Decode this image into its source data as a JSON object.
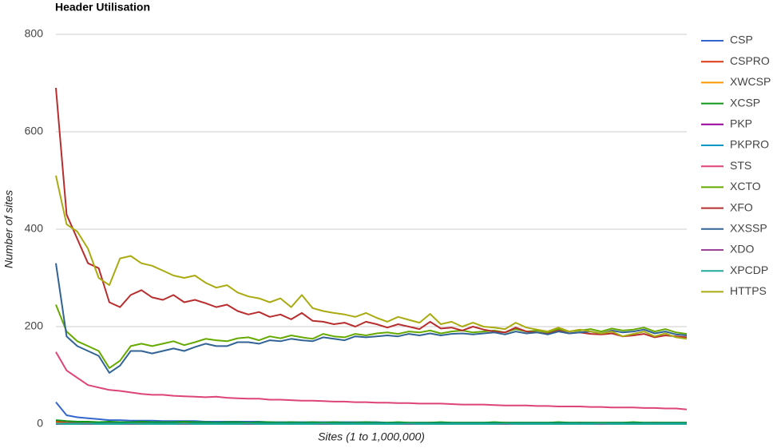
{
  "chart_data": {
    "type": "line",
    "title": "Header Utilisation",
    "x_label": "Sites (1 to 1,000,000)",
    "y_label": "Number of sites",
    "categories": [
      null,
      null,
      null,
      null,
      null,
      null,
      null,
      null,
      null,
      null,
      null,
      null,
      null,
      null,
      null,
      null,
      null,
      null,
      null,
      null,
      null,
      null,
      null,
      null,
      null,
      null,
      null,
      null,
      null,
      null,
      null,
      null,
      null,
      null,
      null,
      null,
      null,
      null,
      null,
      null,
      null,
      null,
      null,
      null,
      null,
      null,
      null,
      null,
      null,
      null,
      null,
      null,
      null,
      null,
      null,
      null,
      null,
      null,
      null,
      null
    ],
    "ylim": [
      0,
      800
    ],
    "yticks": [
      0,
      200,
      400,
      600,
      800
    ],
    "grid": true,
    "legend": "right",
    "series": [
      {
        "name": "CSP",
        "color": "#3366cc",
        "values": [
          45,
          18,
          14,
          12,
          10,
          8,
          8,
          7,
          7,
          7,
          6,
          6,
          6,
          6,
          5,
          5,
          5,
          5,
          5,
          5,
          4,
          4,
          4,
          4,
          4,
          4,
          4,
          4,
          4,
          4,
          4,
          3,
          3,
          3,
          3,
          3,
          3,
          3,
          3,
          3,
          3,
          3,
          3,
          3,
          3,
          3,
          3,
          3,
          3,
          3,
          3,
          3,
          3,
          3,
          3,
          3,
          3,
          3,
          3,
          3
        ]
      },
      {
        "name": "CSPRO",
        "color": "#dc3912",
        "values": [
          5,
          3,
          3,
          2,
          2,
          2,
          3,
          2,
          2,
          2,
          2,
          3,
          2,
          2,
          2,
          2,
          3,
          2,
          2,
          2,
          2,
          2,
          3,
          2,
          2,
          2,
          2,
          2,
          3,
          2,
          2,
          2,
          2,
          2,
          2,
          3,
          2,
          2,
          2,
          2,
          2,
          2,
          3,
          2,
          2,
          2,
          2,
          2,
          2,
          3,
          2,
          2,
          2,
          2,
          2,
          2,
          3,
          2,
          2,
          2
        ]
      },
      {
        "name": "XWCSP",
        "color": "#ff9900",
        "values": [
          2,
          1,
          1,
          1,
          1,
          1,
          1,
          1,
          1,
          1,
          1,
          1,
          1,
          1,
          1,
          1,
          1,
          1,
          1,
          1,
          1,
          1,
          1,
          1,
          1,
          1,
          1,
          1,
          1,
          1,
          1,
          1,
          1,
          1,
          1,
          1,
          1,
          1,
          1,
          1,
          1,
          1,
          1,
          1,
          1,
          1,
          1,
          1,
          1,
          1,
          1,
          1,
          1,
          1,
          1,
          1,
          1,
          1,
          1,
          1
        ]
      },
      {
        "name": "XCSP",
        "color": "#109618",
        "values": [
          8,
          6,
          5,
          5,
          4,
          5,
          4,
          4,
          5,
          4,
          4,
          4,
          5,
          4,
          4,
          3,
          4,
          4,
          3,
          4,
          4,
          3,
          4,
          3,
          4,
          3,
          4,
          3,
          3,
          4,
          3,
          3,
          4,
          3,
          3,
          3,
          4,
          3,
          3,
          3,
          3,
          4,
          3,
          3,
          3,
          3,
          3,
          4,
          3,
          3,
          3,
          3,
          3,
          3,
          4,
          3,
          3,
          3,
          3,
          3
        ]
      },
      {
        "name": "PKP",
        "color": "#990099",
        "values": [
          0,
          0,
          0,
          0,
          0,
          0,
          0,
          0,
          0,
          0,
          0,
          0,
          0,
          0,
          0,
          0,
          0,
          0,
          0,
          0,
          0,
          0,
          0,
          0,
          0,
          0,
          0,
          0,
          0,
          0,
          0,
          0,
          0,
          0,
          0,
          0,
          0,
          0,
          0,
          0,
          0,
          0,
          0,
          0,
          0,
          0,
          0,
          0,
          0,
          0,
          0,
          0,
          0,
          0,
          0,
          0,
          0,
          0,
          0,
          0
        ]
      },
      {
        "name": "PKPRO",
        "color": "#0099c6",
        "values": [
          1,
          1,
          1,
          1,
          1,
          1,
          1,
          1,
          1,
          1,
          1,
          1,
          1,
          1,
          1,
          1,
          1,
          1,
          1,
          1,
          1,
          1,
          1,
          1,
          1,
          1,
          1,
          1,
          1,
          1,
          1,
          1,
          1,
          1,
          1,
          1,
          1,
          1,
          1,
          1,
          1,
          1,
          1,
          1,
          1,
          1,
          1,
          1,
          1,
          1,
          1,
          1,
          1,
          1,
          1,
          1,
          1,
          1,
          1,
          1
        ]
      },
      {
        "name": "STS",
        "color": "#dd4477",
        "values": [
          148,
          110,
          95,
          80,
          75,
          70,
          68,
          65,
          62,
          60,
          60,
          58,
          57,
          56,
          55,
          56,
          54,
          53,
          52,
          52,
          50,
          50,
          49,
          48,
          48,
          47,
          46,
          46,
          45,
          45,
          44,
          44,
          43,
          43,
          42,
          42,
          42,
          41,
          40,
          40,
          40,
          39,
          38,
          38,
          38,
          37,
          37,
          36,
          36,
          36,
          35,
          35,
          34,
          34,
          34,
          33,
          33,
          32,
          32,
          30
        ]
      },
      {
        "name": "XCTO",
        "color": "#66aa00",
        "values": [
          245,
          190,
          170,
          160,
          150,
          115,
          130,
          160,
          165,
          160,
          165,
          170,
          162,
          168,
          175,
          172,
          170,
          176,
          178,
          172,
          180,
          176,
          182,
          178,
          175,
          185,
          180,
          178,
          185,
          182,
          186,
          188,
          185,
          190,
          188,
          192,
          186,
          190,
          192,
          188,
          190,
          192,
          188,
          195,
          190,
          192,
          188,
          195,
          190,
          192,
          195,
          190,
          196,
          192,
          194,
          198,
          190,
          195,
          188,
          185
        ]
      },
      {
        "name": "XFO",
        "color": "#b82e2e",
        "values": [
          690,
          430,
          380,
          330,
          320,
          250,
          240,
          265,
          275,
          260,
          255,
          265,
          250,
          255,
          248,
          240,
          245,
          232,
          225,
          230,
          220,
          225,
          215,
          228,
          212,
          210,
          205,
          208,
          200,
          210,
          205,
          198,
          205,
          200,
          195,
          210,
          196,
          198,
          192,
          200,
          194,
          190,
          188,
          198,
          190,
          188,
          185,
          192,
          186,
          188,
          185,
          184,
          186,
          180,
          182,
          185,
          178,
          182,
          180,
          178
        ]
      },
      {
        "name": "XXSSP",
        "color": "#316395",
        "values": [
          330,
          180,
          160,
          150,
          140,
          105,
          120,
          150,
          150,
          145,
          150,
          155,
          150,
          158,
          165,
          160,
          160,
          168,
          168,
          165,
          172,
          170,
          175,
          172,
          170,
          178,
          175,
          172,
          180,
          178,
          180,
          182,
          180,
          185,
          182,
          186,
          182,
          185,
          186,
          184,
          186,
          188,
          184,
          190,
          186,
          188,
          184,
          190,
          186,
          188,
          190,
          186,
          192,
          188,
          190,
          194,
          186,
          190,
          184,
          182
        ]
      },
      {
        "name": "XDO",
        "color": "#994499",
        "values": [
          0,
          0,
          0,
          0,
          0,
          0,
          0,
          0,
          0,
          0,
          0,
          0,
          0,
          0,
          0,
          0,
          0,
          0,
          0,
          0,
          0,
          0,
          0,
          0,
          0,
          0,
          0,
          0,
          0,
          0,
          0,
          0,
          0,
          0,
          0,
          0,
          0,
          0,
          0,
          0,
          0,
          0,
          0,
          0,
          0,
          0,
          0,
          0,
          0,
          0,
          0,
          0,
          0,
          0,
          0,
          0,
          0,
          0,
          0,
          0
        ]
      },
      {
        "name": "XPCDP",
        "color": "#22aa99",
        "values": [
          1,
          0,
          0,
          1,
          0,
          0,
          0,
          1,
          0,
          0,
          0,
          0,
          1,
          0,
          0,
          0,
          0,
          0,
          1,
          0,
          0,
          0,
          0,
          0,
          0,
          1,
          0,
          0,
          0,
          0,
          0,
          0,
          0,
          1,
          0,
          0,
          0,
          0,
          0,
          0,
          0,
          0,
          1,
          0,
          0,
          0,
          0,
          0,
          0,
          0,
          0,
          1,
          0,
          0,
          0,
          0,
          0,
          0,
          0,
          0
        ]
      },
      {
        "name": "HTTPS",
        "color": "#aaaa11",
        "values": [
          510,
          410,
          395,
          360,
          300,
          285,
          340,
          345,
          330,
          325,
          315,
          305,
          300,
          305,
          290,
          280,
          285,
          270,
          262,
          258,
          250,
          258,
          240,
          265,
          238,
          232,
          228,
          225,
          220,
          228,
          218,
          210,
          220,
          214,
          208,
          226,
          205,
          210,
          200,
          208,
          200,
          198,
          195,
          208,
          198,
          194,
          190,
          198,
          190,
          194,
          190,
          186,
          190,
          180,
          185,
          190,
          180,
          186,
          178,
          175
        ]
      }
    ]
  }
}
